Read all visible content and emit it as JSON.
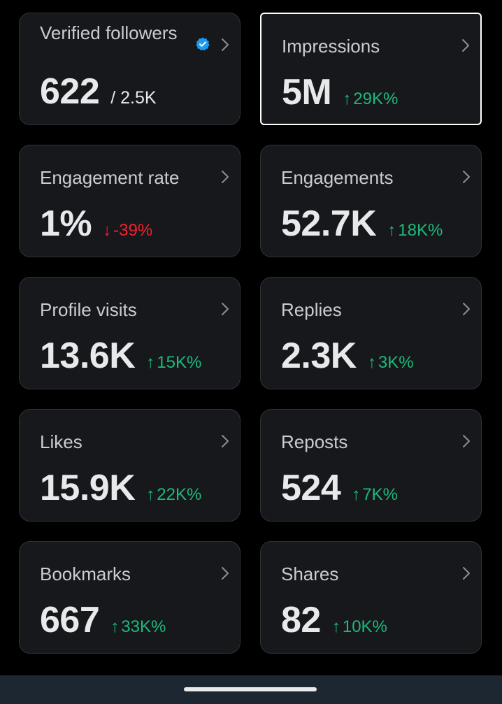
{
  "cards": [
    {
      "label": "Verified followers",
      "value": "622",
      "sub": "/ 2.5K",
      "verified": true
    },
    {
      "label": "Impressions",
      "value": "5M",
      "delta": "29K%",
      "direction": "up",
      "selected": true
    },
    {
      "label": "Engagement rate",
      "value": "1%",
      "delta": "-39%",
      "direction": "down"
    },
    {
      "label": "Engagements",
      "value": "52.7K",
      "delta": "18K%",
      "direction": "up"
    },
    {
      "label": "Profile visits",
      "value": "13.6K",
      "delta": "15K%",
      "direction": "up"
    },
    {
      "label": "Replies",
      "value": "2.3K",
      "delta": "3K%",
      "direction": "up"
    },
    {
      "label": "Likes",
      "value": "15.9K",
      "delta": "22K%",
      "direction": "up"
    },
    {
      "label": "Reposts",
      "value": "524",
      "delta": "7K%",
      "direction": "up"
    },
    {
      "label": "Bookmarks",
      "value": "667",
      "delta": "33K%",
      "direction": "up"
    },
    {
      "label": "Shares",
      "value": "82",
      "delta": "10K%",
      "direction": "up"
    }
  ],
  "arrows": {
    "up": "↑",
    "down": "↓"
  },
  "colors": {
    "background": "#000000",
    "card": "#16181c",
    "up": "#1fb87a",
    "down": "#f4212e",
    "verified": "#1d9bf0"
  },
  "icons": {
    "chevron": "chevron-right-icon",
    "verified": "verified-badge-icon"
  }
}
